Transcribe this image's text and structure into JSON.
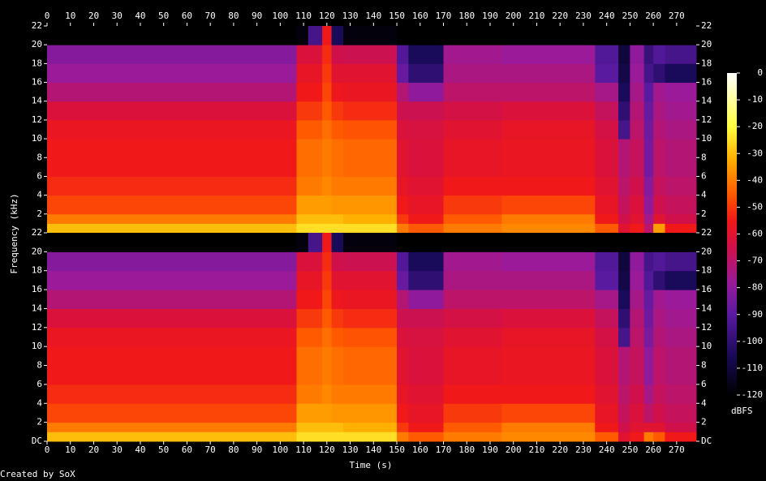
{
  "chart_data": [
    {
      "type": "heatmap",
      "x_edges": [
        0,
        107,
        112,
        118,
        122,
        127,
        150,
        155,
        170,
        195,
        235,
        245,
        250,
        256,
        260,
        265,
        278.4
      ],
      "y_edges": [
        0,
        1,
        2,
        4,
        6,
        10,
        12,
        14,
        16,
        18,
        20,
        22
      ],
      "values": [
        [
          -30,
          -25,
          -25,
          -25,
          -25,
          -25,
          -40,
          -45,
          -40,
          -38,
          -45,
          -60,
          -55,
          -70,
          -35,
          -55
        ],
        [
          -40,
          -30,
          -30,
          -30,
          -30,
          -32,
          -50,
          -55,
          -45,
          -40,
          -55,
          -65,
          -60,
          -75,
          -60,
          -65
        ],
        [
          -48,
          -35,
          -35,
          -35,
          -36,
          -36,
          -55,
          -58,
          -50,
          -48,
          -58,
          -68,
          -62,
          -80,
          -65,
          -68
        ],
        [
          -52,
          -40,
          -40,
          -38,
          -40,
          -40,
          -58,
          -60,
          -55,
          -55,
          -60,
          -70,
          -65,
          -82,
          -68,
          -70
        ],
        [
          -55,
          -42,
          -42,
          -40,
          -42,
          -43,
          -60,
          -62,
          -58,
          -57,
          -62,
          -72,
          -68,
          -85,
          -70,
          -72
        ],
        [
          -57,
          -45,
          -45,
          -42,
          -45,
          -46,
          -62,
          -63,
          -60,
          -58,
          -64,
          -95,
          -70,
          -86,
          -72,
          -74
        ],
        [
          -62,
          -50,
          -50,
          -45,
          -50,
          -52,
          -66,
          -66,
          -64,
          -62,
          -68,
          -100,
          -72,
          -88,
          -74,
          -76
        ],
        [
          -72,
          -55,
          -55,
          -48,
          -56,
          -57,
          -72,
          -80,
          -70,
          -70,
          -75,
          -105,
          -75,
          -90,
          -76,
          -78
        ],
        [
          -78,
          -58,
          -58,
          -50,
          -60,
          -60,
          -88,
          -100,
          -74,
          -74,
          -90,
          -108,
          -78,
          -95,
          -100,
          -105
        ],
        [
          -82,
          -62,
          -62,
          -52,
          -65,
          -66,
          -92,
          -105,
          -76,
          -78,
          -92,
          -110,
          -80,
          -98,
          -92,
          -95
        ],
        [
          -120,
          -118,
          -95,
          -55,
          -105,
          -118,
          -120,
          -120,
          -120,
          -120,
          -120,
          -120,
          -120,
          -120,
          -120,
          -120
        ]
      ],
      "xlim": [
        0,
        278.4
      ],
      "ylim": [
        0,
        22
      ],
      "xticks": [
        0,
        10,
        20,
        30,
        40,
        50,
        60,
        70,
        80,
        90,
        100,
        110,
        120,
        130,
        140,
        150,
        160,
        170,
        180,
        190,
        200,
        210,
        220,
        230,
        240,
        250,
        260,
        270
      ],
      "yticks": [
        2,
        4,
        6,
        8,
        10,
        12,
        14,
        16,
        18,
        20,
        22
      ]
    },
    {
      "type": "heatmap",
      "x_edges": [
        0,
        107,
        112,
        118,
        122,
        127,
        150,
        155,
        170,
        195,
        235,
        245,
        250,
        256,
        260,
        265,
        278.4
      ],
      "y_edges": [
        0,
        1,
        2,
        4,
        6,
        10,
        12,
        14,
        16,
        18,
        20,
        22
      ],
      "values": [
        [
          -30,
          -25,
          -25,
          -25,
          -25,
          -25,
          -40,
          -45,
          -40,
          -38,
          -45,
          -60,
          -55,
          -40,
          -45,
          -55
        ],
        [
          -40,
          -30,
          -30,
          -30,
          -30,
          -32,
          -50,
          -55,
          -45,
          -40,
          -55,
          -65,
          -60,
          -60,
          -60,
          -65
        ],
        [
          -48,
          -35,
          -35,
          -35,
          -36,
          -36,
          -55,
          -58,
          -50,
          -48,
          -58,
          -68,
          -62,
          -70,
          -65,
          -68
        ],
        [
          -52,
          -40,
          -40,
          -38,
          -40,
          -40,
          -58,
          -60,
          -55,
          -55,
          -60,
          -70,
          -65,
          -75,
          -68,
          -70
        ],
        [
          -55,
          -42,
          -42,
          -40,
          -42,
          -43,
          -60,
          -62,
          -58,
          -57,
          -62,
          -72,
          -68,
          -80,
          -70,
          -72
        ],
        [
          -57,
          -45,
          -45,
          -42,
          -45,
          -46,
          -62,
          -63,
          -60,
          -58,
          -64,
          -95,
          -70,
          -84,
          -72,
          -74
        ],
        [
          -62,
          -50,
          -50,
          -45,
          -50,
          -52,
          -66,
          -66,
          -64,
          -62,
          -68,
          -100,
          -72,
          -86,
          -74,
          -76
        ],
        [
          -72,
          -55,
          -55,
          -48,
          -56,
          -57,
          -72,
          -80,
          -70,
          -70,
          -75,
          -105,
          -75,
          -88,
          -76,
          -78
        ],
        [
          -78,
          -58,
          -58,
          -50,
          -60,
          -60,
          -88,
          -100,
          -74,
          -74,
          -90,
          -108,
          -78,
          -92,
          -100,
          -105
        ],
        [
          -82,
          -62,
          -62,
          -52,
          -65,
          -66,
          -92,
          -105,
          -76,
          -78,
          -92,
          -110,
          -80,
          -95,
          -92,
          -95
        ],
        [
          -120,
          -118,
          -95,
          -55,
          -105,
          -118,
          -120,
          -120,
          -120,
          -120,
          -120,
          -120,
          -120,
          -120,
          -120,
          -120
        ]
      ],
      "xlim": [
        0,
        278.4
      ],
      "ylim": [
        0,
        22
      ],
      "xticks": [
        0,
        10,
        20,
        30,
        40,
        50,
        60,
        70,
        80,
        90,
        100,
        110,
        120,
        130,
        140,
        150,
        160,
        170,
        180,
        190,
        200,
        210,
        220,
        230,
        240,
        250,
        260,
        270
      ],
      "yticks": [
        {
          "value": 0,
          "label": "DC"
        },
        2,
        4,
        6,
        8,
        10,
        12,
        14,
        16,
        18,
        20,
        22
      ]
    }
  ],
  "colorbar": {
    "label": "dBFS",
    "lim": [
      -120,
      0
    ],
    "ticks": [
      0,
      -10,
      -20,
      -30,
      -40,
      -50,
      -60,
      -70,
      -80,
      -90,
      -100,
      -110,
      -120
    ]
  },
  "x_label": "Time (s)",
  "y_label": "Frequency (kHz)",
  "credit": "Created by SoX"
}
